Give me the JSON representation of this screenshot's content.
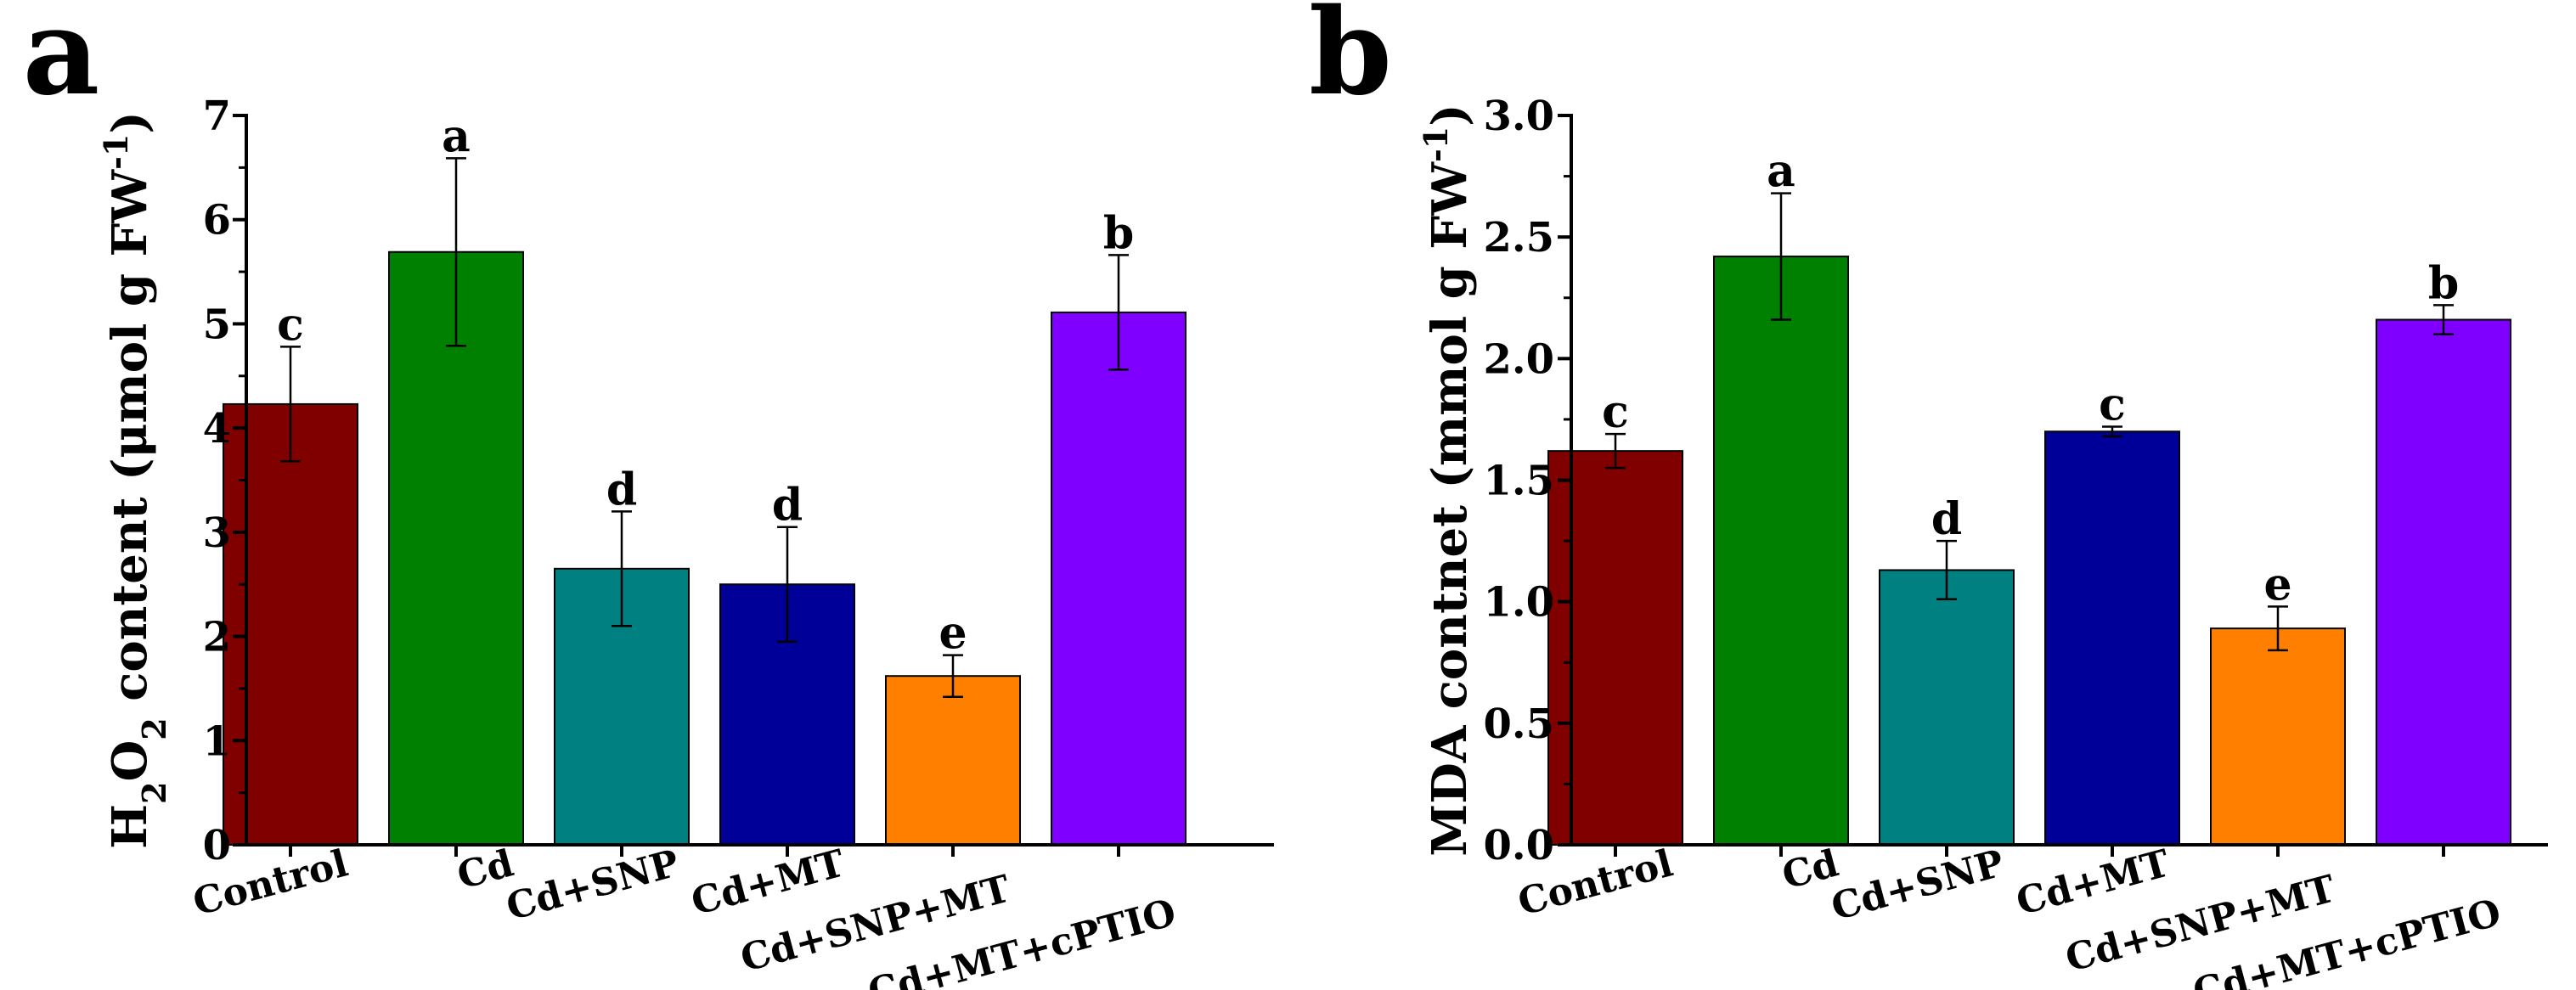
{
  "chart_data": [
    {
      "panel_label": "a",
      "type": "bar",
      "ylabel_parts": [
        "H",
        "2",
        "O",
        "2",
        " content (μmol g FW",
        "-1",
        ")"
      ],
      "categories": [
        "Control",
        "Cd",
        "Cd+SNP",
        "Cd+MT",
        "Cd+SNP+MT",
        "Cd+MT+cPTIO"
      ],
      "values": [
        4.23,
        5.69,
        2.65,
        2.5,
        1.62,
        5.11
      ],
      "errors": [
        0.55,
        0.9,
        0.55,
        0.55,
        0.2,
        0.55
      ],
      "significance": [
        "c",
        "a",
        "d",
        "d",
        "e",
        "b"
      ],
      "colors": [
        "#800000",
        "#008000",
        "#008080",
        "#000099",
        "#ff8000",
        "#8000ff"
      ],
      "ylim": [
        0,
        7
      ],
      "yticks": [
        0,
        1,
        2,
        3,
        4,
        5,
        6,
        7
      ],
      "ytick_labels": [
        "0",
        "1",
        "2",
        "3",
        "4",
        "5",
        "6",
        "7"
      ],
      "xlabel": "",
      "grid": false
    },
    {
      "panel_label": "b",
      "type": "bar",
      "ylabel_parts": [
        "MDA contnet (mmol g FW",
        "-1",
        ")"
      ],
      "categories": [
        "Control",
        "Cd",
        "Cd+SNP",
        "Cd+MT",
        "Cd+SNP+MT",
        "Cd+MT+cPTIO"
      ],
      "values": [
        1.62,
        2.42,
        1.13,
        1.7,
        0.89,
        2.16
      ],
      "errors": [
        0.07,
        0.26,
        0.12,
        0.02,
        0.09,
        0.06
      ],
      "significance": [
        "c",
        "a",
        "d",
        "c",
        "e",
        "b"
      ],
      "colors": [
        "#800000",
        "#008000",
        "#008080",
        "#000099",
        "#ff8000",
        "#8000ff"
      ],
      "ylim": [
        0,
        3
      ],
      "yticks": [
        0,
        0.5,
        1,
        1.5,
        2,
        2.5,
        3
      ],
      "ytick_labels": [
        "0.0",
        "0.5",
        "1.0",
        "1.5",
        "2.0",
        "2.5",
        "3.0"
      ],
      "xlabel": "",
      "grid": false
    }
  ]
}
